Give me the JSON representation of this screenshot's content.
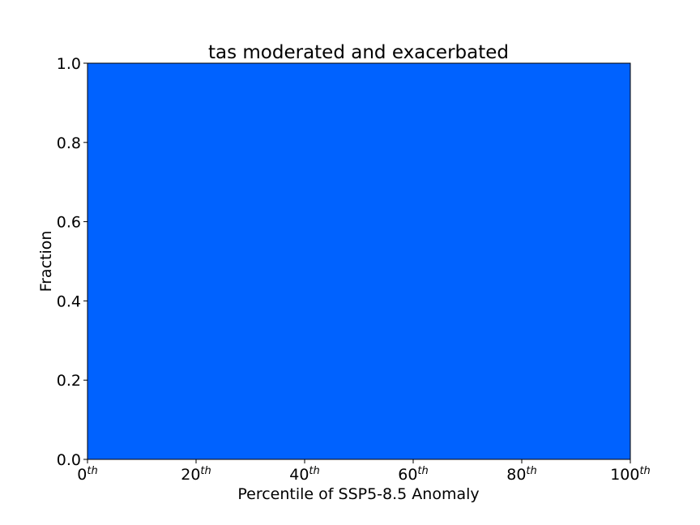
{
  "chart_data": {
    "type": "area",
    "title": "tas moderated and exacerbated",
    "xlabel": "Percentile of SSP5-8.5 Anomaly",
    "ylabel": "Fraction",
    "xlim": [
      0,
      100
    ],
    "ylim": [
      0,
      1
    ],
    "grid": false,
    "x_ticks": [
      {
        "value": 0,
        "base": "0",
        "sup": "th"
      },
      {
        "value": 20,
        "base": "20",
        "sup": "th"
      },
      {
        "value": 40,
        "base": "40",
        "sup": "th"
      },
      {
        "value": 60,
        "base": "60",
        "sup": "th"
      },
      {
        "value": 80,
        "base": "80",
        "sup": "th"
      },
      {
        "value": 100,
        "base": "100",
        "sup": "th"
      }
    ],
    "y_ticks": [
      {
        "value": 0,
        "label": "0.0"
      },
      {
        "value": 0.2,
        "label": "0.2"
      },
      {
        "value": 0.4,
        "label": "0.4"
      },
      {
        "value": 0.6,
        "label": "0.6"
      },
      {
        "value": 0.8,
        "label": "0.8"
      },
      {
        "value": 1.0,
        "label": "1.0"
      }
    ],
    "series": [
      {
        "color": "#0062ff",
        "x": [
          0,
          100
        ],
        "y_lower": [
          0,
          0
        ],
        "y_upper": [
          1,
          1
        ]
      }
    ]
  }
}
